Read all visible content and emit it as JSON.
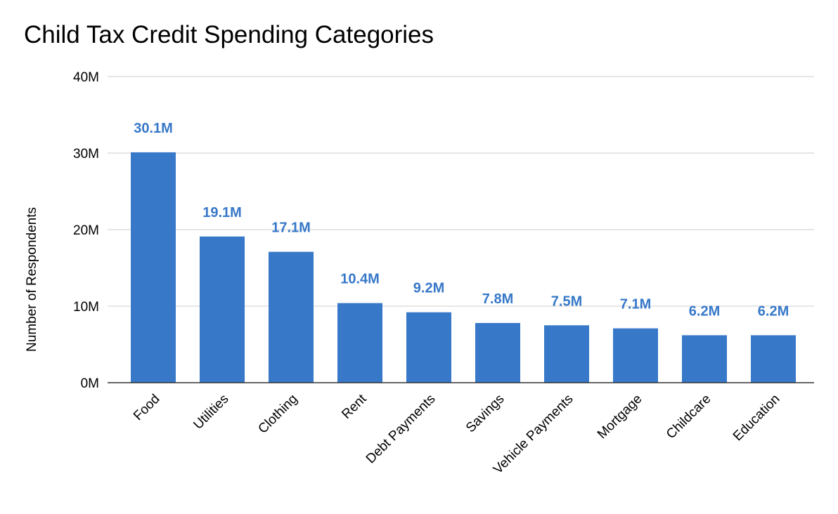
{
  "chart_data": {
    "type": "bar",
    "title": "Child Tax Credit Spending Categories",
    "xlabel": "",
    "ylabel": "Number of Respondents",
    "ylim": [
      0,
      40
    ],
    "y_ticks": [
      0,
      10,
      20,
      30,
      40
    ],
    "y_tick_labels": [
      "0M",
      "10M",
      "20M",
      "30M",
      "40M"
    ],
    "grid": true,
    "legend": "none",
    "bar_color": "#3778c8",
    "label_color": "#3778c8",
    "categories": [
      "Food",
      "Utilities",
      "Clothing",
      "Rent",
      "Debt Payments",
      "Savings",
      "Vehicle Payments",
      "Mortgage",
      "Childcare",
      "Education"
    ],
    "values": [
      30.1,
      19.1,
      17.1,
      10.4,
      9.2,
      7.8,
      7.5,
      7.1,
      6.2,
      6.2
    ],
    "data_labels": [
      "30.1M",
      "19.1M",
      "17.1M",
      "10.4M",
      "9.2M",
      "7.8M",
      "7.5M",
      "7.1M",
      "6.2M",
      "6.2M"
    ]
  }
}
